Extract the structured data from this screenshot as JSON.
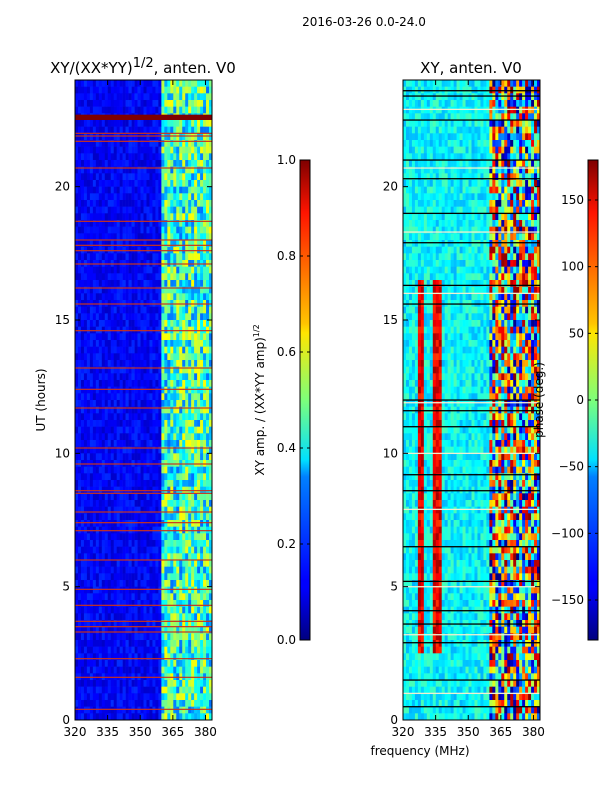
{
  "figure": {
    "suptitle": "2016-03-26 0.0-24.0",
    "shared_xlabel": "frequency (MHz)"
  },
  "chart_data": [
    {
      "type": "heatmap",
      "title_main": "XY/(XX*YY)",
      "title_sup": "1/2",
      "title_tail": ", anten. V0",
      "ylabel": "UT (hours)",
      "xlim": [
        320,
        383
      ],
      "ylim": [
        0,
        24
      ],
      "x_ticks": [
        320,
        335,
        350,
        365,
        380
      ],
      "y_ticks": [
        0,
        5,
        10,
        15,
        20
      ],
      "colorbar": {
        "label_main": "XY amp. / (XX*YY amp)",
        "label_sup": "1/2",
        "range": [
          0.0,
          1.0
        ],
        "ticks": [
          0.0,
          0.2,
          0.4,
          0.6,
          0.8,
          1.0
        ],
        "tick_labels": [
          "0.0",
          "0.2",
          "0.4",
          "0.6",
          "0.8",
          "1.0"
        ]
      },
      "background_value": 0.12,
      "high_band_mhz": [
        360,
        383
      ],
      "high_band_value": 0.35,
      "rfi_lines_hours": [
        0.4,
        1.6,
        2.3,
        3.3,
        3.5,
        3.7,
        4.3,
        4.9,
        6.0,
        7.1,
        7.4,
        7.8,
        8.5,
        8.6,
        9.6,
        10.2,
        11.7,
        12.4,
        13.2,
        14.6,
        15.6,
        16.2,
        17.1,
        17.6,
        17.8,
        18.0,
        18.7,
        20.7,
        21.7,
        21.9,
        22.0
      ],
      "saturated_band_hours": [
        22.5,
        22.7
      ]
    },
    {
      "type": "heatmap",
      "title_main": "XY, anten. V0",
      "ylabel": "phase (deg.)",
      "xlim": [
        320,
        383
      ],
      "ylim": [
        0,
        24
      ],
      "x_ticks": [
        320,
        335,
        350,
        365,
        380
      ],
      "y_ticks": [
        0,
        5,
        10,
        15,
        20
      ],
      "colorbar": {
        "label_main": "phase (deg.)",
        "range": [
          -180,
          180
        ],
        "ticks": [
          -150,
          -100,
          -50,
          0,
          50,
          100,
          150
        ],
        "tick_labels": [
          "−150",
          "−100",
          "−50",
          "0",
          "50",
          "100",
          "150"
        ]
      },
      "phase_stripes_mhz": [
        328,
        336
      ],
      "phase_stripe_hours": [
        2.5,
        16.5
      ],
      "high_band_mhz": [
        360,
        383
      ],
      "gap_lines_hours": [
        0.5,
        1.0,
        1.5,
        2.9,
        3.2,
        3.6,
        4.1,
        5.0,
        5.2,
        6.5,
        7.9,
        8.6,
        9.2,
        10.0,
        11.0,
        11.6,
        11.9,
        12.0,
        15.6,
        16.0,
        16.3,
        17.9,
        18.3,
        19.0,
        20.3,
        20.7,
        21.0,
        22.5,
        22.9,
        23.4,
        23.6
      ]
    }
  ]
}
